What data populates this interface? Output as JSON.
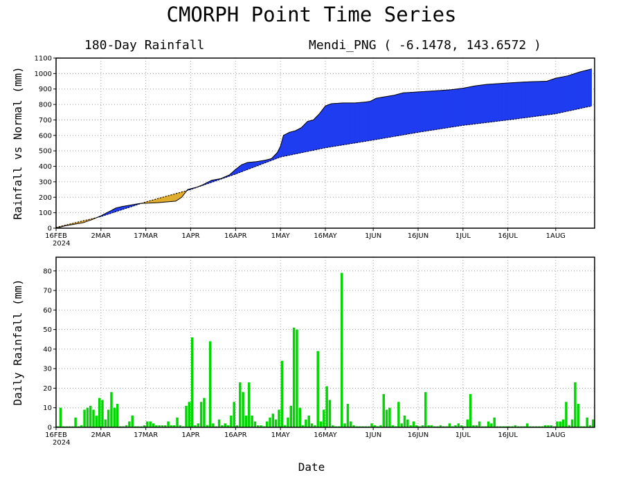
{
  "title": "CMORPH Point Time Series",
  "top_panel": {
    "left_label": "180-Day Rainfall",
    "right_label": "Mendi_PNG ( -6.1478, 143.6572 )"
  },
  "x_axis_title": "Date",
  "colors": {
    "above_normal": "#1f3cf0",
    "below_normal": "#e1ad2e",
    "daily_bar": "#00d600",
    "grid": "#9a9a9a"
  },
  "chart_data": [
    {
      "type": "area",
      "ylabel": "Rainfall vs Normal (mm)",
      "ylim": [
        0,
        1100
      ],
      "yticks": [
        0,
        100,
        200,
        300,
        400,
        500,
        600,
        700,
        800,
        900,
        1000,
        1100
      ],
      "xticks": [
        {
          "day": 0,
          "label": "16FEB",
          "sublabel": "2024"
        },
        {
          "day": 15,
          "label": "2MAR"
        },
        {
          "day": 30,
          "label": "17MAR"
        },
        {
          "day": 45,
          "label": "1APR"
        },
        {
          "day": 60,
          "label": "16APR"
        },
        {
          "day": 75,
          "label": "1MAY"
        },
        {
          "day": 90,
          "label": "16MAY"
        },
        {
          "day": 106,
          "label": "1JUN"
        },
        {
          "day": 121,
          "label": "16JUN"
        },
        {
          "day": 136,
          "label": "1JUL"
        },
        {
          "day": 151,
          "label": "16JUL"
        },
        {
          "day": 167,
          "label": "1AUG"
        }
      ],
      "grid": true,
      "series": [
        {
          "role": "actual",
          "points": [
            [
              0,
              0
            ],
            [
              3,
              15
            ],
            [
              6,
              25
            ],
            [
              9,
              35
            ],
            [
              12,
              55
            ],
            [
              15,
              80
            ],
            [
              18,
              110
            ],
            [
              20,
              130
            ],
            [
              22,
              140
            ],
            [
              25,
              150
            ],
            [
              28,
              160
            ],
            [
              31,
              162
            ],
            [
              34,
              165
            ],
            [
              37,
              170
            ],
            [
              40,
              175
            ],
            [
              42,
              200
            ],
            [
              44,
              250
            ],
            [
              47,
              265
            ],
            [
              49,
              280
            ],
            [
              50,
              290
            ],
            [
              52,
              310
            ],
            [
              55,
              320
            ],
            [
              58,
              345
            ],
            [
              60,
              380
            ],
            [
              62,
              410
            ],
            [
              64,
              425
            ],
            [
              67,
              430
            ],
            [
              70,
              440
            ],
            [
              72,
              450
            ],
            [
              74,
              490
            ],
            [
              75,
              530
            ],
            [
              76,
              600
            ],
            [
              78,
              620
            ],
            [
              80,
              630
            ],
            [
              82,
              650
            ],
            [
              84,
              690
            ],
            [
              86,
              700
            ],
            [
              88,
              740
            ],
            [
              90,
              790
            ],
            [
              92,
              805
            ],
            [
              96,
              810
            ],
            [
              100,
              810
            ],
            [
              103,
              815
            ],
            [
              105,
              820
            ],
            [
              107,
              840
            ],
            [
              110,
              850
            ],
            [
              113,
              860
            ],
            [
              116,
              875
            ],
            [
              120,
              880
            ],
            [
              124,
              885
            ],
            [
              128,
              890
            ],
            [
              132,
              895
            ],
            [
              136,
              905
            ],
            [
              140,
              920
            ],
            [
              144,
              930
            ],
            [
              148,
              935
            ],
            [
              152,
              940
            ],
            [
              156,
              945
            ],
            [
              160,
              948
            ],
            [
              164,
              950
            ],
            [
              167,
              970
            ],
            [
              171,
              985
            ],
            [
              175,
              1010
            ],
            [
              179,
              1030
            ]
          ]
        },
        {
          "role": "normal",
          "points": [
            [
              0,
              5
            ],
            [
              15,
              75
            ],
            [
              30,
              170
            ],
            [
              45,
              250
            ],
            [
              60,
              350
            ],
            [
              75,
              460
            ],
            [
              90,
              520
            ],
            [
              106,
              570
            ],
            [
              121,
              620
            ],
            [
              136,
              665
            ],
            [
              151,
              700
            ],
            [
              167,
              740
            ],
            [
              179,
              790
            ]
          ]
        }
      ]
    },
    {
      "type": "bar",
      "ylabel": "Daily Rainfall (mm)",
      "ylim": [
        0,
        87
      ],
      "yticks": [
        0,
        10,
        20,
        30,
        40,
        50,
        60,
        70,
        80
      ],
      "xticks": [
        {
          "day": 0,
          "label": "16FEB",
          "sublabel": "2024"
        },
        {
          "day": 15,
          "label": "2MAR"
        },
        {
          "day": 30,
          "label": "17MAR"
        },
        {
          "day": 45,
          "label": "1APR"
        },
        {
          "day": 60,
          "label": "16APR"
        },
        {
          "day": 75,
          "label": "1MAY"
        },
        {
          "day": 90,
          "label": "16MAY"
        },
        {
          "day": 106,
          "label": "1JUN"
        },
        {
          "day": 121,
          "label": "16JUN"
        },
        {
          "day": 136,
          "label": "1JUL"
        },
        {
          "day": 151,
          "label": "16JUL"
        },
        {
          "day": 167,
          "label": "1AUG"
        }
      ],
      "grid": true,
      "values": [
        0.5,
        10,
        0.5,
        0.5,
        0.5,
        0.5,
        5,
        0.5,
        1,
        9,
        10,
        11,
        9,
        6,
        15,
        14,
        4,
        9,
        18,
        10,
        12,
        0.5,
        0.5,
        1,
        3,
        6,
        0.5,
        0.5,
        0.5,
        1,
        3,
        3,
        2,
        1,
        1,
        1,
        1,
        3,
        1,
        1,
        5,
        1,
        0.5,
        11,
        13,
        46,
        1,
        2,
        13,
        15,
        1,
        44,
        2,
        0.5,
        4,
        1,
        2,
        1,
        6,
        13,
        1,
        23,
        18,
        6,
        23,
        6,
        3,
        1,
        1,
        0.5,
        3,
        5,
        7,
        4,
        9,
        34,
        1,
        5,
        11,
        51,
        50,
        10,
        1,
        4,
        6,
        2,
        1,
        39,
        3,
        9,
        21,
        14,
        1,
        0.5,
        0.5,
        79,
        2,
        12,
        3,
        1,
        0.5,
        0.5,
        0.5,
        0.5,
        0.5,
        2,
        1,
        0.5,
        1,
        17,
        9,
        10,
        1,
        0.5,
        13,
        2,
        6,
        4,
        1,
        3,
        1,
        0.5,
        1,
        18,
        1,
        1,
        0.5,
        0.5,
        1,
        0.5,
        0.5,
        2,
        0.5,
        1,
        2,
        1,
        0.5,
        4,
        17,
        1,
        1,
        3,
        0.5,
        0.5,
        3,
        2,
        5,
        0.5,
        0.5,
        0.5,
        0.5,
        0.5,
        0.5,
        1,
        0.5,
        0.5,
        0.5,
        2,
        0.5,
        0.5,
        0.5,
        0.5,
        0.5,
        1,
        1,
        1,
        0.5,
        3,
        3,
        4,
        13,
        1,
        4,
        23,
        12,
        0.5,
        0.5,
        5,
        1,
        4
      ]
    }
  ]
}
